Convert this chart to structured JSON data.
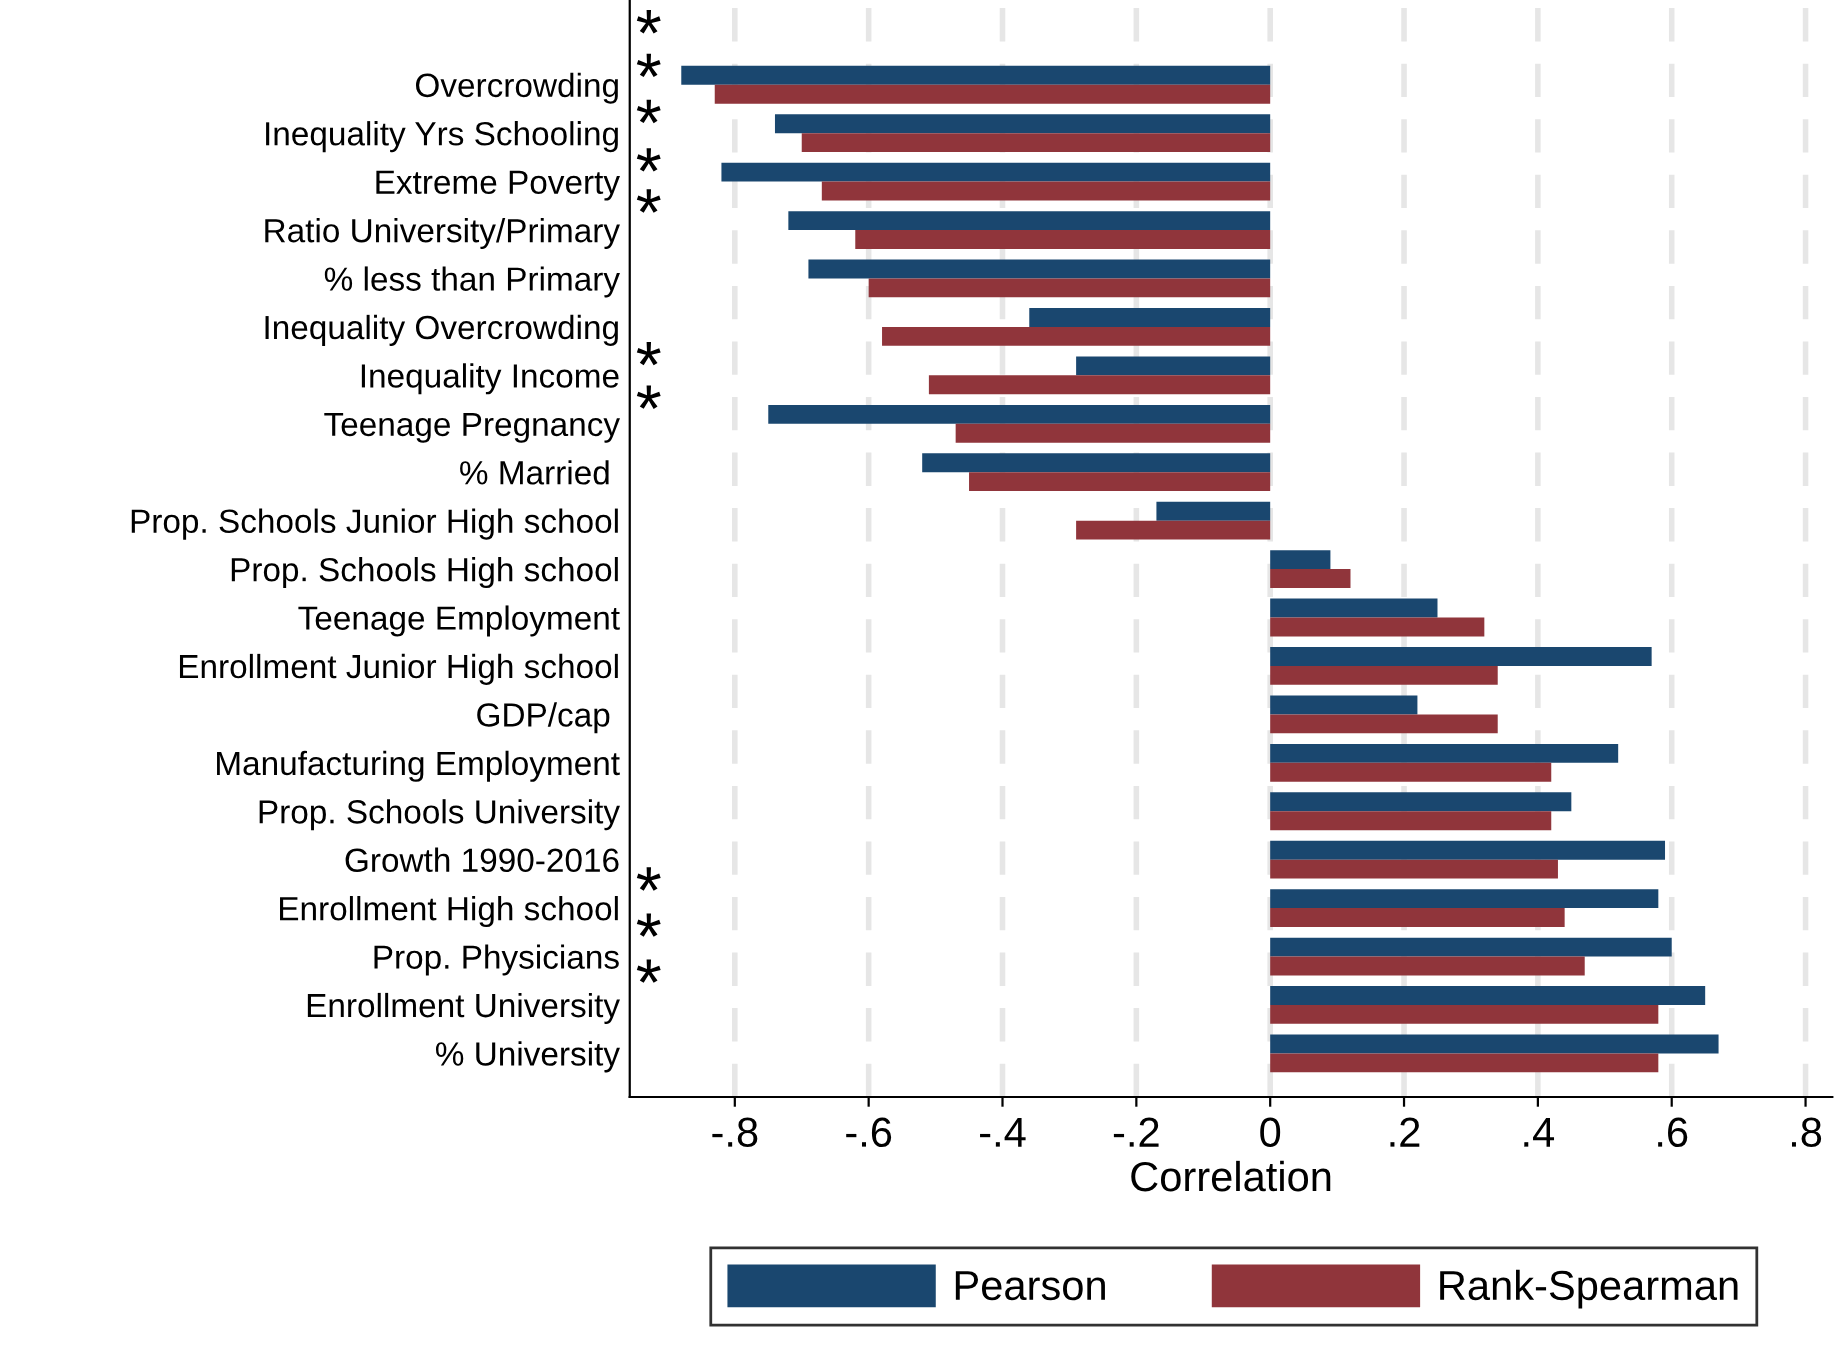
{
  "chart_data": {
    "type": "bar",
    "orientation": "horizontal",
    "xlabel": "Correlation",
    "categories": [
      "Overcrowding",
      "Inequality Yrs Schooling",
      "Extreme Poverty",
      "Ratio University/Primary",
      "% less than Primary",
      "Inequality Overcrowding",
      "Inequality Income",
      "Teenage Pregnancy",
      "% Married ",
      "Prop. Schools Junior High school",
      "Prop. Schools High school",
      "Teenage Employment",
      "Enrollment Junior High school",
      "GDP/cap ",
      "Manufacturing Employment",
      "Prop. Schools University",
      "Growth 1990-2016",
      "Enrollment High school",
      "Prop. Physicians",
      "Enrollment University",
      "% University"
    ],
    "series": [
      {
        "name": "Pearson",
        "color": "#1a476f",
        "values": [
          -0.88,
          -0.74,
          -0.82,
          -0.72,
          -0.69,
          -0.36,
          -0.29,
          -0.75,
          -0.52,
          -0.17,
          0.09,
          0.25,
          0.57,
          0.22,
          0.52,
          0.45,
          0.59,
          0.58,
          0.6,
          0.65,
          0.67
        ]
      },
      {
        "name": "Rank-Spearman",
        "color": "#90353b",
        "values": [
          -0.83,
          -0.7,
          -0.67,
          -0.62,
          -0.6,
          -0.58,
          -0.51,
          -0.47,
          -0.45,
          -0.29,
          0.12,
          0.32,
          0.34,
          0.34,
          0.42,
          0.42,
          0.43,
          0.44,
          0.47,
          0.58,
          0.58
        ]
      }
    ],
    "xlim": [
      -0.957,
      0.84
    ],
    "xticks": [
      {
        "value": -0.8,
        "label": "-.8"
      },
      {
        "value": -0.6,
        "label": "-.6"
      },
      {
        "value": -0.4,
        "label": "-.4"
      },
      {
        "value": -0.2,
        "label": "-.2"
      },
      0,
      {
        "value": 0.2,
        "label": ".2"
      },
      {
        "value": 0.4,
        "label": ".4"
      },
      {
        "value": 0.6,
        "label": ".6"
      },
      {
        "value": 0.8,
        "label": ".8"
      }
    ],
    "grid": "x",
    "legend": "bottom",
    "annotations": [
      "*",
      "*",
      "*",
      "*",
      "*",
      "*",
      "*",
      "*",
      "*",
      "*"
    ]
  }
}
